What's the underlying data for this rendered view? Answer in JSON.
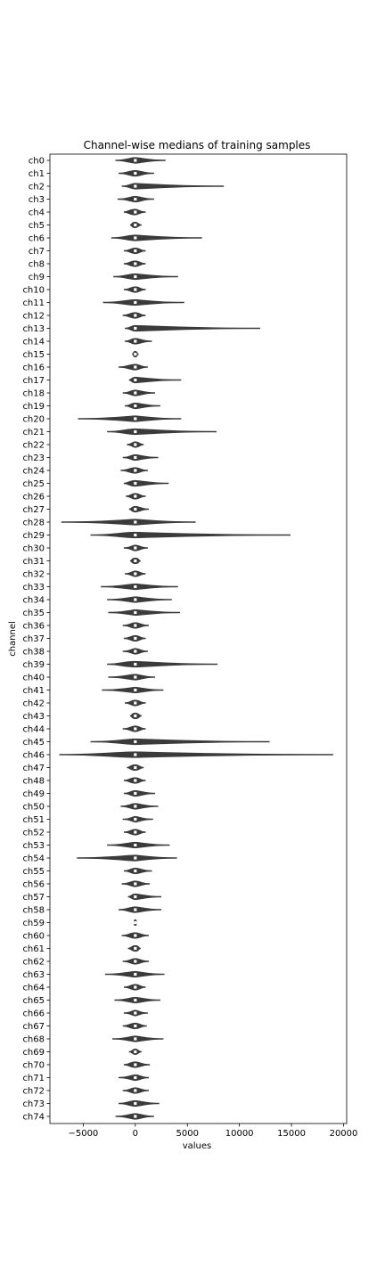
{
  "chart_data": {
    "type": "violin",
    "title": "Channel-wise medians of training samples",
    "xlabel": "values",
    "ylabel": "channel",
    "xlim": [
      -8200,
      20300
    ],
    "xticks": [
      -5000,
      0,
      5000,
      10000,
      15000,
      20000
    ],
    "xtick_labels": [
      "−5000",
      "0",
      "5000",
      "10000",
      "15000",
      "20000"
    ],
    "grid": false,
    "color": "#3b3b3b",
    "categories": [
      "ch0",
      "ch1",
      "ch2",
      "ch3",
      "ch4",
      "ch5",
      "ch6",
      "ch7",
      "ch8",
      "ch9",
      "ch10",
      "ch11",
      "ch12",
      "ch13",
      "ch14",
      "ch15",
      "ch16",
      "ch17",
      "ch18",
      "ch19",
      "ch20",
      "ch21",
      "ch22",
      "ch23",
      "ch24",
      "ch25",
      "ch26",
      "ch27",
      "ch28",
      "ch29",
      "ch30",
      "ch31",
      "ch32",
      "ch33",
      "ch34",
      "ch35",
      "ch36",
      "ch37",
      "ch38",
      "ch39",
      "ch40",
      "ch41",
      "ch42",
      "ch43",
      "ch44",
      "ch45",
      "ch46",
      "ch47",
      "ch48",
      "ch49",
      "ch50",
      "ch51",
      "ch52",
      "ch53",
      "ch54",
      "ch55",
      "ch56",
      "ch57",
      "ch58",
      "ch59",
      "ch60",
      "ch61",
      "ch62",
      "ch63",
      "ch64",
      "ch65",
      "ch66",
      "ch67",
      "ch68",
      "ch69",
      "ch70",
      "ch71",
      "ch72",
      "ch73",
      "ch74"
    ],
    "series": [
      {
        "min": [
          -1900,
          -1600,
          -1300,
          -1700,
          -1100,
          -500,
          -2300,
          -1100,
          -1100,
          -2100,
          -1100,
          -3100,
          -1200,
          -1000,
          -1000,
          -300,
          -1600,
          -600,
          -1200,
          -1000,
          -5500,
          -2700,
          -800,
          -1200,
          -1400,
          -1100,
          -900,
          -600,
          -7100,
          -4300,
          -1100,
          -500,
          -1000,
          -3300,
          -2700,
          -2600,
          -1200,
          -1100,
          -1200,
          -2700,
          -2600,
          -3200,
          -1000,
          -500,
          -1200,
          -4300,
          -7300,
          -800,
          -1100,
          -1100,
          -1400,
          -1200,
          -1100,
          -2700,
          -5600,
          -1100,
          -1300,
          -700,
          -1600,
          -100,
          -1300,
          -700,
          -1200,
          -2900,
          -1100,
          -2000,
          -1100,
          -1200,
          -2200,
          -600,
          -1100,
          -1600,
          -1200,
          -1600,
          -1900
        ],
        "q1": [
          -300,
          -300,
          -200,
          -200,
          -400,
          -200,
          -500,
          -200,
          -300,
          -400,
          -200,
          -500,
          -300,
          -200,
          -200,
          -60,
          -300,
          -200,
          -200,
          -200,
          -300,
          -600,
          -100,
          -200,
          -300,
          -400,
          -200,
          -200,
          -300,
          -900,
          -100,
          -200,
          -100,
          -300,
          -200,
          -100,
          -200,
          -200,
          -100,
          -900,
          -300,
          -100,
          -200,
          -200,
          -200,
          -500,
          -1200,
          -300,
          -300,
          -200,
          -200,
          -50,
          -200,
          -300,
          -500,
          -200,
          -200,
          -200,
          -300,
          -30,
          -300,
          -200,
          -200,
          -200,
          -200,
          -200,
          -50,
          -300,
          -200,
          -100,
          -300,
          -100,
          -200,
          -300,
          -200
        ],
        "median": [
          0,
          0,
          0,
          0,
          0,
          0,
          0,
          0,
          0,
          0,
          0,
          0,
          0,
          0,
          0,
          0,
          0,
          0,
          0,
          0,
          0,
          0,
          0,
          0,
          0,
          0,
          0,
          0,
          0,
          0,
          0,
          0,
          0,
          0,
          0,
          0,
          0,
          0,
          0,
          0,
          0,
          0,
          0,
          0,
          0,
          0,
          0,
          0,
          0,
          0,
          0,
          0,
          0,
          0,
          0,
          0,
          0,
          0,
          0,
          0,
          0,
          0,
          0,
          0,
          0,
          0,
          0,
          0,
          0,
          0,
          0,
          0,
          0,
          0,
          0
        ],
        "q3": [
          200,
          200,
          200,
          200,
          100,
          100,
          200,
          200,
          200,
          200,
          200,
          200,
          200,
          200,
          200,
          60,
          200,
          200,
          200,
          200,
          200,
          200,
          200,
          200,
          200,
          300,
          200,
          200,
          200,
          300,
          200,
          200,
          200,
          200,
          200,
          200,
          200,
          200,
          200,
          400,
          200,
          200,
          200,
          200,
          200,
          300,
          100,
          200,
          200,
          200,
          200,
          50,
          200,
          200,
          100,
          200,
          200,
          200,
          200,
          30,
          200,
          200,
          200,
          200,
          200,
          200,
          50,
          200,
          200,
          100,
          200,
          200,
          200,
          200,
          200
        ],
        "max": [
          2900,
          1800,
          8500,
          1800,
          1000,
          600,
          6400,
          1000,
          1000,
          4100,
          1000,
          4700,
          1000,
          12000,
          1600,
          300,
          1200,
          4400,
          1900,
          2400,
          4400,
          7800,
          800,
          2200,
          1200,
          3200,
          1000,
          1300,
          5800,
          14900,
          1200,
          500,
          1000,
          4100,
          3500,
          4300,
          1300,
          1000,
          1200,
          7900,
          1900,
          2700,
          1000,
          600,
          1000,
          12900,
          19000,
          800,
          1000,
          1900,
          2200,
          1700,
          1000,
          3300,
          4000,
          1600,
          1400,
          2500,
          2500,
          100,
          1300,
          500,
          1300,
          2800,
          1000,
          2400,
          1200,
          1100,
          2700,
          600,
          1400,
          1300,
          1300,
          2300,
          1800
        ]
      }
    ]
  }
}
